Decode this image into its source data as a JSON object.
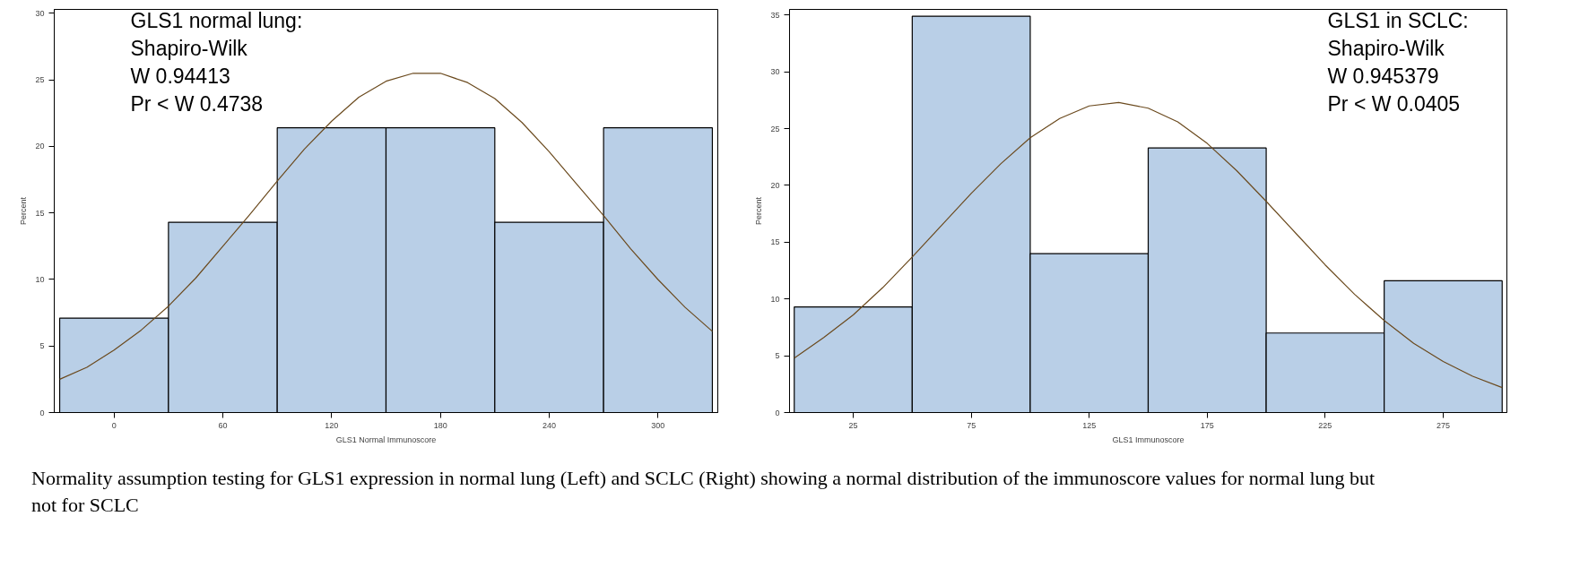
{
  "chart_data": [
    {
      "type": "histogram",
      "xlabel": "GLS1 Normal Immunoscore",
      "ylabel": "Percent",
      "color": "#b9cfe7",
      "bins": [
        -30,
        30,
        90,
        150,
        210,
        270,
        330
      ],
      "values": [
        7.1,
        14.3,
        21.4,
        21.4,
        14.3,
        21.4
      ],
      "series": [
        {
          "type": "line",
          "color": "#6b4a1e",
          "x": [
            -30,
            -15,
            0,
            15,
            30,
            45,
            60,
            75,
            90,
            105,
            120,
            135,
            150,
            165,
            180,
            195,
            210,
            225,
            240,
            255,
            270,
            285,
            300,
            315,
            330
          ],
          "values": [
            2.5,
            3.4,
            4.7,
            6.2,
            8.0,
            10.1,
            12.5,
            14.9,
            17.4,
            19.8,
            21.9,
            23.7,
            24.9,
            25.5,
            25.5,
            24.8,
            23.6,
            21.8,
            19.6,
            17.2,
            14.8,
            12.3,
            10.0,
            7.9,
            6.1
          ]
        }
      ],
      "xlim": [
        -33,
        333
      ],
      "ylim": [
        0,
        30.3
      ],
      "xticks": [
        0,
        60,
        120,
        180,
        240,
        300
      ],
      "yticks": [
        0,
        5,
        10,
        15,
        20,
        25,
        30
      ],
      "grid": false,
      "annotations": [
        "GLS1 normal lung:\nShapiro-Wilk\nW 0.94413\nPr < W 0.4738"
      ]
    },
    {
      "type": "histogram",
      "xlabel": "GLS1 Immunoscore",
      "ylabel": "Percent",
      "color": "#b9cfe7",
      "bins": [
        0,
        50,
        100,
        150,
        200,
        250,
        300
      ],
      "values": [
        9.3,
        34.9,
        14.0,
        23.3,
        7.0,
        11.6
      ],
      "series": [
        {
          "type": "line",
          "color": "#6b4a1e",
          "x": [
            0,
            12.5,
            25,
            37.5,
            50,
            62.5,
            75,
            87.5,
            100,
            112.5,
            125,
            137.5,
            150,
            162.5,
            175,
            187.5,
            200,
            212.5,
            225,
            237.5,
            250,
            262.5,
            275,
            287.5,
            300
          ],
          "values": [
            4.8,
            6.6,
            8.6,
            11.0,
            13.7,
            16.5,
            19.3,
            21.9,
            24.2,
            25.9,
            27.0,
            27.3,
            26.8,
            25.6,
            23.7,
            21.3,
            18.6,
            15.8,
            13.0,
            10.4,
            8.1,
            6.1,
            4.5,
            3.2,
            2.2
          ]
        }
      ],
      "xlim": [
        -2,
        302
      ],
      "ylim": [
        0,
        35.5
      ],
      "xticks": [
        25,
        75,
        125,
        175,
        225,
        275
      ],
      "yticks": [
        0,
        5,
        10,
        15,
        20,
        25,
        30,
        35
      ],
      "grid": false,
      "annotations": [
        "GLS1 in SCLC:\nShapiro-Wilk\nW 0.945379\nPr < W      0.0405",
        "Normality assumption testing for GLS1 expression in normal lung (Left) and SCLC (Right) showing a normal distribution of the immunoscore values for normal lung but not for SCLC"
      ]
    }
  ]
}
